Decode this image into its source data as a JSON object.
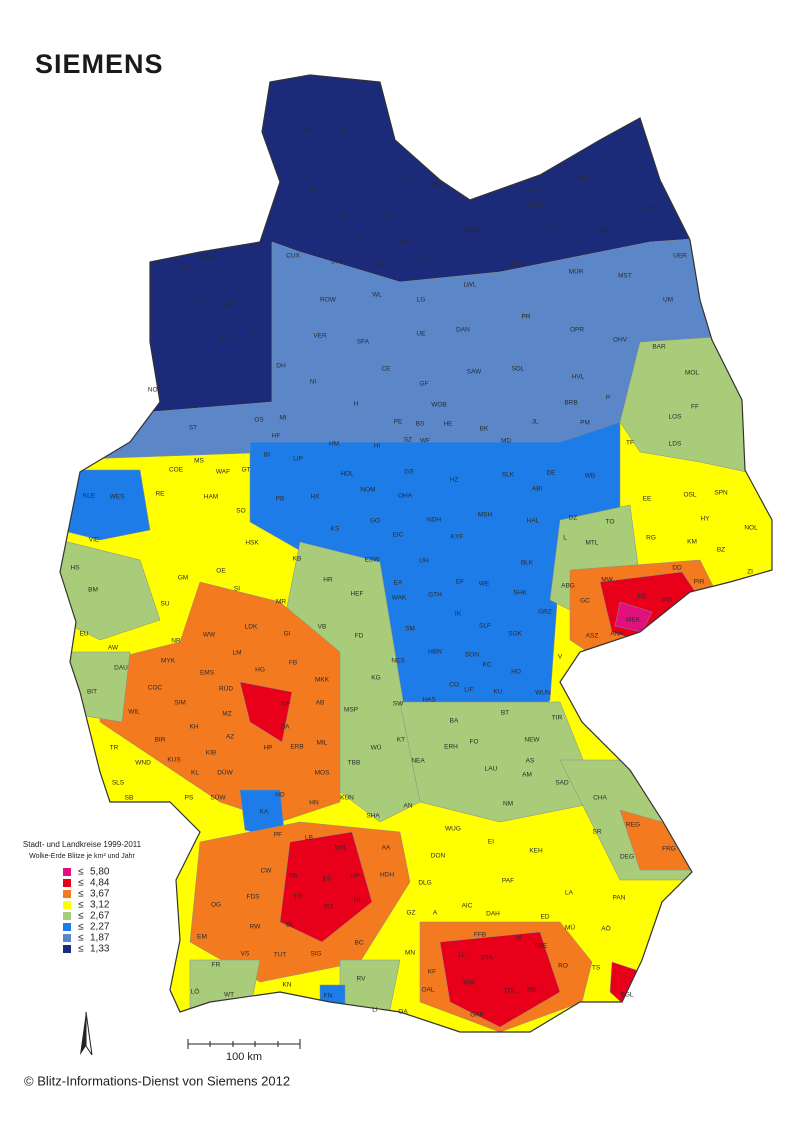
{
  "header": {
    "logo": "SIEMENS"
  },
  "legend": {
    "title": "Stadt- und Landkreise 1999-2011",
    "subtitle": "Wolke-Erde Blitze je km² und Jahr",
    "symbol": "≤",
    "items": [
      {
        "value": 5.8,
        "label": "5,80",
        "color": "#e0117f"
      },
      {
        "value": 4.84,
        "label": "4,84",
        "color": "#e8001b"
      },
      {
        "value": 3.67,
        "label": "3,67",
        "color": "#f47a20"
      },
      {
        "value": 3.12,
        "label": "3,12",
        "color": "#ffff00"
      },
      {
        "value": 2.67,
        "label": "2,67",
        "color": "#a8cc7a"
      },
      {
        "value": 2.27,
        "label": "2,27",
        "color": "#1d7ce8"
      },
      {
        "value": 1.87,
        "label": "1,87",
        "color": "#5b87c9"
      },
      {
        "value": 1.33,
        "label": "1,33",
        "color": "#1c2a7a"
      }
    ]
  },
  "scale_bar": {
    "label": "100 km"
  },
  "footer": {
    "copyright": "© Blitz-Informations-Dienst von Siemens 2012"
  },
  "districts": [
    "NF",
    "SL",
    "HEI",
    "RD",
    "PLO",
    "OH",
    "IZ",
    "SE",
    "PI",
    "OD",
    "HH",
    "RZ",
    "NVP",
    "HRO",
    "DBR",
    "NWM",
    "GÜ",
    "DM",
    "OVP",
    "LWL",
    "PCH",
    "MÜR",
    "MST",
    "UER",
    "AUR",
    "WTM",
    "LER",
    "WST",
    "CLP",
    "OL",
    "EL",
    "NOH",
    "CUX",
    "STD",
    "ROW",
    "WL",
    "LG",
    "DAN",
    "UE",
    "VER",
    "SFA",
    "PR",
    "OPR",
    "OHV",
    "UM",
    "DH",
    "NI",
    "CE",
    "GF",
    "SAW",
    "SDL",
    "HVL",
    "BAR",
    "MOL",
    "OS",
    "ST",
    "MI",
    "H",
    "WOB",
    "PE",
    "BS",
    "HE",
    "BRB",
    "P",
    "PM",
    "LOS",
    "FF",
    "BK",
    "JL",
    "HF",
    "BI",
    "HM",
    "HI",
    "SZ",
    "WF",
    "MD",
    "TF",
    "LDS",
    "COE",
    "MS",
    "WAF",
    "GT",
    "LIP",
    "HOL",
    "GS",
    "HZ",
    "SLK",
    "DE",
    "WB",
    "NOM",
    "OHA",
    "ABI",
    "EE",
    "OSL",
    "SPN",
    "KLE",
    "WES",
    "RE",
    "HAM",
    "PB",
    "HX",
    "SO",
    "GO",
    "NDH",
    "MSH",
    "HAL",
    "DZ",
    "TO",
    "HY",
    "NOL",
    "KS",
    "EIC",
    "KYF",
    "L",
    "MTL",
    "RG",
    "KM",
    "BZ",
    "VIE",
    "HSK",
    "KB",
    "ESW",
    "BLK",
    "ZI",
    "HS",
    "GM",
    "OE",
    "HR",
    "UH",
    "ABG",
    "MW",
    "DD",
    "PIR",
    "BM",
    "SI",
    "HEF",
    "EA",
    "GTH",
    "EF",
    "WE",
    "SHK",
    "GC",
    "FG",
    "DW",
    "WAK",
    "IK",
    "SLF",
    "SOK",
    "GRZ",
    "MEK",
    "SU",
    "MR",
    "VB",
    "EU",
    "AW",
    "NR",
    "WW",
    "LDK",
    "GI",
    "FD",
    "SM",
    "ASZ",
    "ANA",
    "V",
    "DAU",
    "MYK",
    "LM",
    "HG",
    "FB",
    "KG",
    "NES",
    "HBN",
    "SON",
    "KC",
    "HO",
    "COC",
    "EMS",
    "MKK",
    "CO",
    "LIF",
    "KU",
    "WUN",
    "BIT",
    "SIM",
    "RÜD",
    "HAS",
    "BT",
    "AB",
    "MSP",
    "SW",
    "TIR",
    "WIL",
    "MZ",
    "OF",
    "DA",
    "BA",
    "NEW",
    "BIR",
    "KH",
    "AZ",
    "HP",
    "ERB",
    "KT",
    "ERH",
    "FO",
    "TR",
    "KIB",
    "WÜ",
    "NEA",
    "AS",
    "KUS",
    "DÜW",
    "MIL",
    "WND",
    "KL",
    "MOS",
    "TBB",
    "LAU",
    "SLS",
    "HD",
    "HN",
    "KÜN",
    "AM",
    "SAD",
    "SB",
    "PS",
    "SÜW",
    "AN",
    "NM",
    "CHA",
    "KA",
    "SHA",
    "REG",
    "SR",
    "LB",
    "WUG",
    "EI",
    "KEH",
    "WN",
    "AA",
    "FRG",
    "PF",
    "DEG",
    "CW",
    "BB",
    "ES",
    "GP",
    "HDH",
    "DON",
    "OG",
    "FDS",
    "TÜ",
    "RT",
    "UL",
    "DLG",
    "PAF",
    "LA",
    "PAN",
    "GZ",
    "A",
    "AIC",
    "DAH",
    "ED",
    "RW",
    "BL",
    "BC",
    "FFB",
    "M",
    "EBE",
    "MÜ",
    "AÖ",
    "EM",
    "SIG",
    "TUT",
    "MN",
    "LL",
    "STA",
    "RO",
    "TS",
    "FR",
    "VS",
    "RV",
    "KF",
    "WM",
    "TÖL",
    "MB",
    "BGL",
    "LÖ",
    "WT",
    "KN",
    "FN",
    "OAL",
    "GAP",
    "OA",
    "LI"
  ]
}
